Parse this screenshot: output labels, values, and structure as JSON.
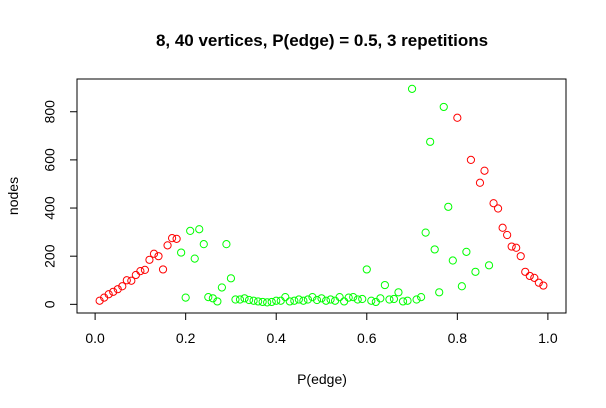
{
  "chart_data": {
    "type": "scatter",
    "title": "8, 40 vertices, P(edge) = 0.5, 3 repetitions",
    "xlabel": "P(edge)",
    "ylabel": "nodes",
    "xlim": [
      -0.04,
      1.04
    ],
    "ylim": [
      -36,
      936
    ],
    "xticks": [
      0,
      0.2,
      0.4,
      0.6,
      0.8,
      1.0
    ],
    "xtick_labels": [
      "0.0",
      "0.2",
      "0.4",
      "0.6",
      "0.8",
      "1.0"
    ],
    "yticks": [
      0,
      200,
      400,
      600,
      800
    ],
    "ytick_labels": [
      "0",
      "200",
      "400",
      "600",
      "800"
    ],
    "grid": false,
    "series": [
      {
        "color": "#ff0000",
        "points": [
          [
            0.01,
            15
          ],
          [
            0.02,
            28
          ],
          [
            0.03,
            42
          ],
          [
            0.04,
            52
          ],
          [
            0.05,
            63
          ],
          [
            0.06,
            75
          ],
          [
            0.07,
            100
          ],
          [
            0.08,
            98
          ],
          [
            0.09,
            122
          ],
          [
            0.1,
            138
          ],
          [
            0.11,
            143
          ],
          [
            0.12,
            185
          ],
          [
            0.13,
            210
          ],
          [
            0.14,
            200
          ],
          [
            0.15,
            145
          ],
          [
            0.16,
            245
          ],
          [
            0.17,
            275
          ],
          [
            0.18,
            272
          ],
          [
            0.8,
            775
          ],
          [
            0.83,
            600
          ],
          [
            0.85,
            505
          ],
          [
            0.86,
            555
          ],
          [
            0.88,
            420
          ],
          [
            0.89,
            398
          ],
          [
            0.9,
            318
          ],
          [
            0.91,
            288
          ],
          [
            0.92,
            240
          ],
          [
            0.93,
            235
          ],
          [
            0.94,
            200
          ],
          [
            0.95,
            135
          ],
          [
            0.96,
            118
          ],
          [
            0.97,
            110
          ],
          [
            0.98,
            90
          ],
          [
            0.99,
            78
          ]
        ]
      },
      {
        "color": "#00ff00",
        "points": [
          [
            0.19,
            215
          ],
          [
            0.2,
            28
          ],
          [
            0.21,
            305
          ],
          [
            0.22,
            190
          ],
          [
            0.23,
            312
          ],
          [
            0.24,
            250
          ],
          [
            0.25,
            30
          ],
          [
            0.26,
            25
          ],
          [
            0.27,
            12
          ],
          [
            0.28,
            70
          ],
          [
            0.29,
            250
          ],
          [
            0.3,
            108
          ],
          [
            0.31,
            20
          ],
          [
            0.32,
            20
          ],
          [
            0.33,
            25
          ],
          [
            0.34,
            18
          ],
          [
            0.35,
            15
          ],
          [
            0.36,
            12
          ],
          [
            0.37,
            10
          ],
          [
            0.38,
            8
          ],
          [
            0.39,
            10
          ],
          [
            0.4,
            15
          ],
          [
            0.41,
            15
          ],
          [
            0.42,
            30
          ],
          [
            0.43,
            12
          ],
          [
            0.44,
            15
          ],
          [
            0.45,
            20
          ],
          [
            0.46,
            15
          ],
          [
            0.47,
            20
          ],
          [
            0.48,
            30
          ],
          [
            0.49,
            18
          ],
          [
            0.5,
            25
          ],
          [
            0.51,
            15
          ],
          [
            0.52,
            20
          ],
          [
            0.53,
            15
          ],
          [
            0.54,
            30
          ],
          [
            0.55,
            12
          ],
          [
            0.56,
            28
          ],
          [
            0.57,
            30
          ],
          [
            0.58,
            20
          ],
          [
            0.59,
            22
          ],
          [
            0.6,
            145
          ],
          [
            0.61,
            15
          ],
          [
            0.62,
            10
          ],
          [
            0.63,
            25
          ],
          [
            0.64,
            80
          ],
          [
            0.65,
            20
          ],
          [
            0.66,
            22
          ],
          [
            0.67,
            50
          ],
          [
            0.68,
            12
          ],
          [
            0.69,
            15
          ],
          [
            0.7,
            895
          ],
          [
            0.71,
            20
          ],
          [
            0.72,
            30
          ],
          [
            0.73,
            298
          ],
          [
            0.74,
            675
          ],
          [
            0.75,
            228
          ],
          [
            0.76,
            50
          ],
          [
            0.77,
            820
          ],
          [
            0.78,
            405
          ],
          [
            0.79,
            182
          ],
          [
            0.81,
            75
          ],
          [
            0.82,
            218
          ],
          [
            0.84,
            135
          ],
          [
            0.87,
            162
          ]
        ]
      }
    ]
  }
}
